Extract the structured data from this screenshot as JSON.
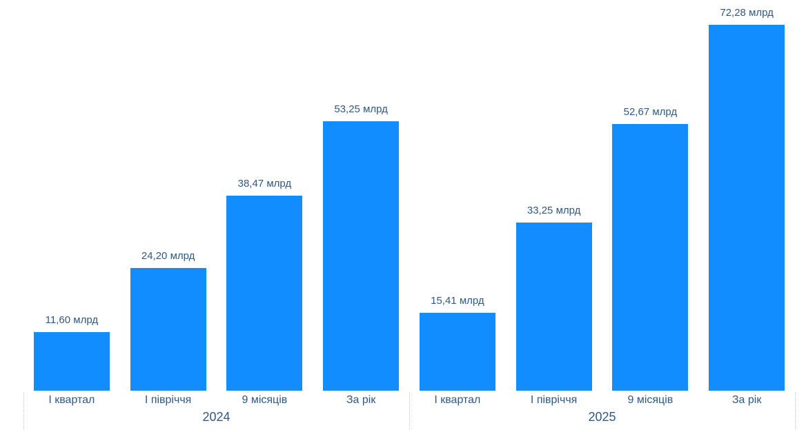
{
  "chart_data": {
    "type": "bar",
    "title": "",
    "orientation": "vertical",
    "unit": "млрд",
    "value_axis_visible": false,
    "data_labels_visible": true,
    "grid": false,
    "legend": "none",
    "bar_color": "#118DFF",
    "text_color": "#2E5984",
    "separator_color": "#C9C9C9",
    "ylim": [
      0,
      72.28
    ],
    "groups": [
      {
        "year": "2024",
        "categories": [
          "І квартал",
          "І півріччя",
          "9 місяців",
          "За рік"
        ],
        "values": [
          11.6,
          24.2,
          38.47,
          53.25
        ],
        "labels": [
          "11,60 млрд",
          "24,20 млрд",
          "38,47 млрд",
          "53,25 млрд"
        ]
      },
      {
        "year": "2025",
        "categories": [
          "І квартал",
          "І півріччя",
          "9 місяців",
          "За рік"
        ],
        "values": [
          15.41,
          33.25,
          52.67,
          72.28
        ],
        "labels": [
          "15,41 млрд",
          "33,25 млрд",
          "52,67 млрд",
          "72,28 млрд"
        ]
      }
    ]
  }
}
